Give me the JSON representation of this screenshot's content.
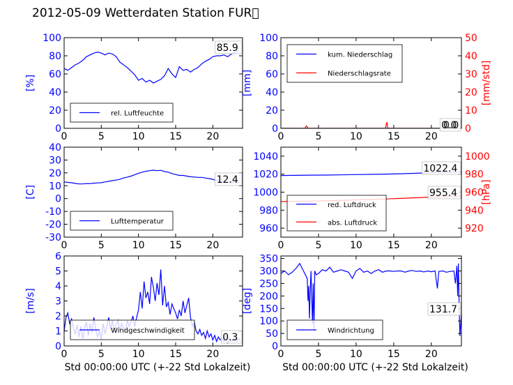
{
  "figure": {
    "title": "2012-05-09 Wetterdaten Station FUR\u0000",
    "colors": {
      "primary": "#0000ff",
      "secondary": "#ff0000",
      "frame": "#000000"
    }
  },
  "chart_data": [
    {
      "id": "humidity",
      "type": "line",
      "ylabel": "[%]",
      "xlabel": "",
      "xlim": [
        0,
        24
      ],
      "ylim": [
        0,
        100
      ],
      "xticks": [
        0,
        5,
        10,
        15,
        20
      ],
      "yticks": [
        0,
        20,
        40,
        60,
        80,
        100
      ],
      "legend_position": "lower-left",
      "value_box": "85.9",
      "series": [
        {
          "name": "rel. Luftfeuchte",
          "color": "#0000ff",
          "x": [
            0,
            0.5,
            1,
            1.5,
            2,
            2.5,
            3,
            3.5,
            4,
            4.5,
            5,
            5.5,
            6,
            6.5,
            7,
            7.5,
            8,
            8.5,
            9,
            9.5,
            10,
            10.5,
            11,
            11.5,
            12,
            12.5,
            13,
            13.5,
            14,
            14.5,
            15,
            15.5,
            16,
            16.5,
            17,
            17.5,
            18,
            18.5,
            19,
            19.5,
            20,
            20.5,
            21,
            21.5,
            22,
            22.5,
            23,
            23.5
          ],
          "y": [
            66,
            64,
            67,
            70,
            72,
            75,
            79,
            81,
            83,
            84,
            83,
            81,
            83,
            82,
            79,
            73,
            70,
            67,
            63,
            59,
            53,
            55,
            51,
            53,
            50,
            52,
            54,
            58,
            66,
            60,
            56,
            68,
            64,
            65,
            62,
            65,
            67,
            71,
            74,
            76,
            79,
            80,
            80,
            81,
            79,
            82,
            84,
            86
          ]
        }
      ]
    },
    {
      "id": "precipitation",
      "type": "line",
      "ylabel": "[mm]",
      "y2label": "[mm/std]",
      "xlabel": "",
      "xlim": [
        0,
        24
      ],
      "ylim": [
        0,
        100
      ],
      "y2lim": [
        0,
        50
      ],
      "xticks": [
        0,
        5,
        10,
        15,
        20
      ],
      "yticks": [
        0,
        20,
        40,
        60,
        80,
        100
      ],
      "y2ticks": [
        0,
        10,
        20,
        30,
        40,
        50
      ],
      "legend_position": "upper-left",
      "value_box": "0.0",
      "value_box2": "0.0",
      "series": [
        {
          "name": "kum. Niederschlag",
          "color": "#0000ff",
          "axis": "left",
          "x": [
            0,
            24
          ],
          "y": [
            0,
            0
          ]
        },
        {
          "name": "Niederschlagsrate",
          "color": "#ff0000",
          "axis": "right",
          "x": [
            0,
            3.2,
            3.3,
            3.4,
            3.5,
            3.6,
            13.9,
            14.0,
            14.1,
            14.2,
            24
          ],
          "y": [
            0,
            0,
            0.8,
            1.3,
            0.8,
            0,
            0,
            2.2,
            3.4,
            0,
            0
          ]
        }
      ]
    },
    {
      "id": "temperature",
      "type": "line",
      "ylabel": "[C]",
      "xlabel": "",
      "xlim": [
        0,
        24
      ],
      "ylim": [
        -30,
        40
      ],
      "xticks": [
        0,
        5,
        10,
        15,
        20
      ],
      "yticks": [
        -30,
        -20,
        -10,
        0,
        10,
        20,
        30,
        40
      ],
      "legend_position": "lower-left",
      "value_box": "12.4",
      "series": [
        {
          "name": "Lufttemperatur",
          "color": "#0000ff",
          "x": [
            0,
            0.5,
            1,
            1.5,
            2,
            2.5,
            3,
            3.5,
            4,
            4.5,
            5,
            5.5,
            6,
            6.5,
            7,
            7.5,
            8,
            8.5,
            9,
            9.5,
            10,
            10.5,
            11,
            11.5,
            12,
            12.5,
            13,
            13.5,
            14,
            14.5,
            15,
            15.5,
            16,
            16.5,
            17,
            17.5,
            18,
            18.5,
            19,
            19.5,
            20,
            20.5,
            21,
            21.5,
            22,
            22.5,
            23,
            23.5
          ],
          "y": [
            13,
            12.6,
            12.3,
            11.8,
            11.4,
            11.4,
            11.7,
            11.6,
            12,
            12.2,
            12.3,
            13,
            13.4,
            14,
            14.4,
            15,
            16,
            16.7,
            17.5,
            18.5,
            19.7,
            20.6,
            21.2,
            21.7,
            22.1,
            21.7,
            22,
            21,
            20.6,
            19.5,
            18.7,
            18,
            18,
            17.5,
            17,
            16.8,
            16.5,
            16.5,
            16,
            15.5,
            15,
            14,
            13.3,
            12.8,
            12.5,
            12.4,
            12.4,
            12.4
          ]
        }
      ]
    },
    {
      "id": "pressure",
      "type": "line",
      "ylabel": "",
      "y2label": "[hPa]",
      "xlabel": "",
      "xlim": [
        0,
        24
      ],
      "ylim": [
        950,
        1050
      ],
      "y2lim": [
        910,
        1010
      ],
      "xticks": [
        0,
        5,
        10,
        15,
        20
      ],
      "yticks": [
        960,
        980,
        1000,
        1020,
        1040
      ],
      "y2ticks": [
        920,
        940,
        960,
        980,
        1000
      ],
      "legend_position": "lower-left",
      "value_box": "1022.4",
      "value_box2": "955.4",
      "series": [
        {
          "name": "red. Luftdruck",
          "color": "#0000ff",
          "axis": "left",
          "x": [
            0,
            2,
            4,
            6,
            8,
            10,
            12,
            14,
            16,
            18,
            20,
            22,
            24
          ],
          "y": [
            1018.5,
            1018.7,
            1018.9,
            1019.0,
            1019.2,
            1019.5,
            1019.8,
            1020.1,
            1020.5,
            1021.0,
            1021.6,
            1022.0,
            1022.4
          ]
        },
        {
          "name": "abs. Luftdruck",
          "color": "#ff0000",
          "axis": "right",
          "x": [
            0,
            2,
            4,
            6,
            8,
            10,
            12,
            14,
            16,
            18,
            20,
            22,
            24
          ],
          "y": [
            949.5,
            949.8,
            950.1,
            950.4,
            950.8,
            951.3,
            951.9,
            952.5,
            953.1,
            953.8,
            954.5,
            955.0,
            955.4
          ]
        }
      ]
    },
    {
      "id": "wind-speed",
      "type": "line",
      "ylabel": "[m/s]",
      "xlabel": "Std 00:00:00 UTC (+-22 Std Lokalzeit)",
      "xlim": [
        0,
        24
      ],
      "ylim": [
        0,
        6
      ],
      "xticks": [
        0,
        5,
        10,
        15,
        20
      ],
      "yticks": [
        0,
        1,
        2,
        3,
        4,
        5,
        6
      ],
      "legend_position": "lower-left",
      "value_box": "0.3",
      "series": [
        {
          "name": "Windgeschwindigkeit",
          "color": "#0000ff",
          "x": [
            0,
            0.25,
            0.5,
            0.75,
            1,
            1.25,
            1.5,
            1.75,
            2,
            2.25,
            2.5,
            2.75,
            3,
            3.25,
            3.5,
            3.75,
            4,
            4.25,
            4.5,
            4.75,
            5,
            5.25,
            5.5,
            5.75,
            6,
            6.25,
            6.5,
            6.75,
            7,
            7.25,
            7.5,
            7.75,
            8,
            8.25,
            8.5,
            8.75,
            9,
            9.25,
            9.5,
            9.75,
            10,
            10.25,
            10.5,
            10.75,
            11,
            11.25,
            11.5,
            11.75,
            12,
            12.25,
            12.5,
            12.75,
            13,
            13.25,
            13.5,
            13.75,
            14,
            14.25,
            14.5,
            14.75,
            15,
            15.25,
            15.5,
            15.75,
            16,
            16.25,
            16.5,
            16.75,
            17,
            17.25,
            17.5,
            17.75,
            18,
            18.25,
            18.5,
            18.75,
            19,
            19.25,
            19.5,
            19.75,
            20,
            20.25,
            20.5,
            20.75,
            21,
            21.25,
            21.5,
            21.75,
            22,
            22.25,
            22.5,
            22.75,
            23,
            23.25,
            23.5,
            23.75
          ],
          "y": [
            1.0,
            1.9,
            2.2,
            1.5,
            1.8,
            1.2,
            0.8,
            1.4,
            0.6,
            1.3,
            0.5,
            1.2,
            1.6,
            0.7,
            1.5,
            0.9,
            1.9,
            1.1,
            0.6,
            1.0,
            0.4,
            1.5,
            0.8,
            1.3,
            1.9,
            1.1,
            1.7,
            0.9,
            1.4,
            1.7,
            1.0,
            1.5,
            1.2,
            1.0,
            1.7,
            1.3,
            1.6,
            2.0,
            1.3,
            1.9,
            2.4,
            3.6,
            2.5,
            4.3,
            3.2,
            3.6,
            2.8,
            4.6,
            3.9,
            3.0,
            4.2,
            3.4,
            5.1,
            2.7,
            4.0,
            2.6,
            2.9,
            2.1,
            2.8,
            2.5,
            2.2,
            1.8,
            2.4,
            2.0,
            3.0,
            2.2,
            2.7,
            3.2,
            1.9,
            1.3,
            1.6,
            1.0,
            0.8,
            1.1,
            0.7,
            0.9,
            0.5,
            1.0,
            0.6,
            0.8,
            0.4,
            0.7,
            0.3,
            0.6,
            0.4,
            0.5,
            0.3,
            0.7,
            0.2,
            0.5,
            0.3,
            0.4,
            0.6,
            0.3,
            0.5,
            0.3
          ]
        }
      ]
    },
    {
      "id": "wind-direction",
      "type": "line",
      "ylabel": "[deg]",
      "xlabel": "Std 00:00:00 UTC (+-22 Std Lokalzeit)",
      "xlim": [
        0,
        24
      ],
      "ylim": [
        0,
        360
      ],
      "xticks": [
        0,
        5,
        10,
        15,
        20
      ],
      "yticks": [
        0,
        50,
        100,
        150,
        200,
        250,
        300,
        350
      ],
      "legend_position": "lower-left",
      "value_box": "131.7",
      "series": [
        {
          "name": "Windrichtung",
          "color": "#0000ff",
          "x": [
            0,
            0.5,
            1,
            1.5,
            2,
            2.5,
            3,
            3.5,
            3.6,
            3.7,
            3.8,
            3.9,
            4.0,
            4.1,
            4.2,
            4.3,
            4.4,
            4.5,
            4.7,
            5,
            5.5,
            6,
            6.5,
            7,
            7.5,
            8,
            8.5,
            9,
            9.5,
            10,
            10.5,
            11,
            11.5,
            12,
            12.5,
            13,
            13.5,
            14,
            14.5,
            15,
            15.5,
            16,
            16.5,
            17,
            17.5,
            18,
            18.5,
            19,
            19.5,
            20,
            20.5,
            20.8,
            21,
            21.5,
            22,
            22.5,
            23,
            23.2,
            23.4,
            23.5,
            23.6,
            23.7,
            23.8,
            24
          ],
          "y": [
            290,
            300,
            285,
            295,
            310,
            330,
            300,
            270,
            180,
            240,
            110,
            220,
            300,
            200,
            90,
            250,
            60,
            300,
            285,
            290,
            305,
            300,
            315,
            295,
            300,
            305,
            300,
            295,
            270,
            300,
            310,
            295,
            300,
            290,
            300,
            305,
            295,
            300,
            300,
            298,
            300,
            300,
            295,
            300,
            302,
            298,
            300,
            296,
            300,
            297,
            300,
            230,
            298,
            300,
            295,
            298,
            300,
            250,
            320,
            200,
            330,
            150,
            40,
            130
          ]
        }
      ]
    }
  ]
}
